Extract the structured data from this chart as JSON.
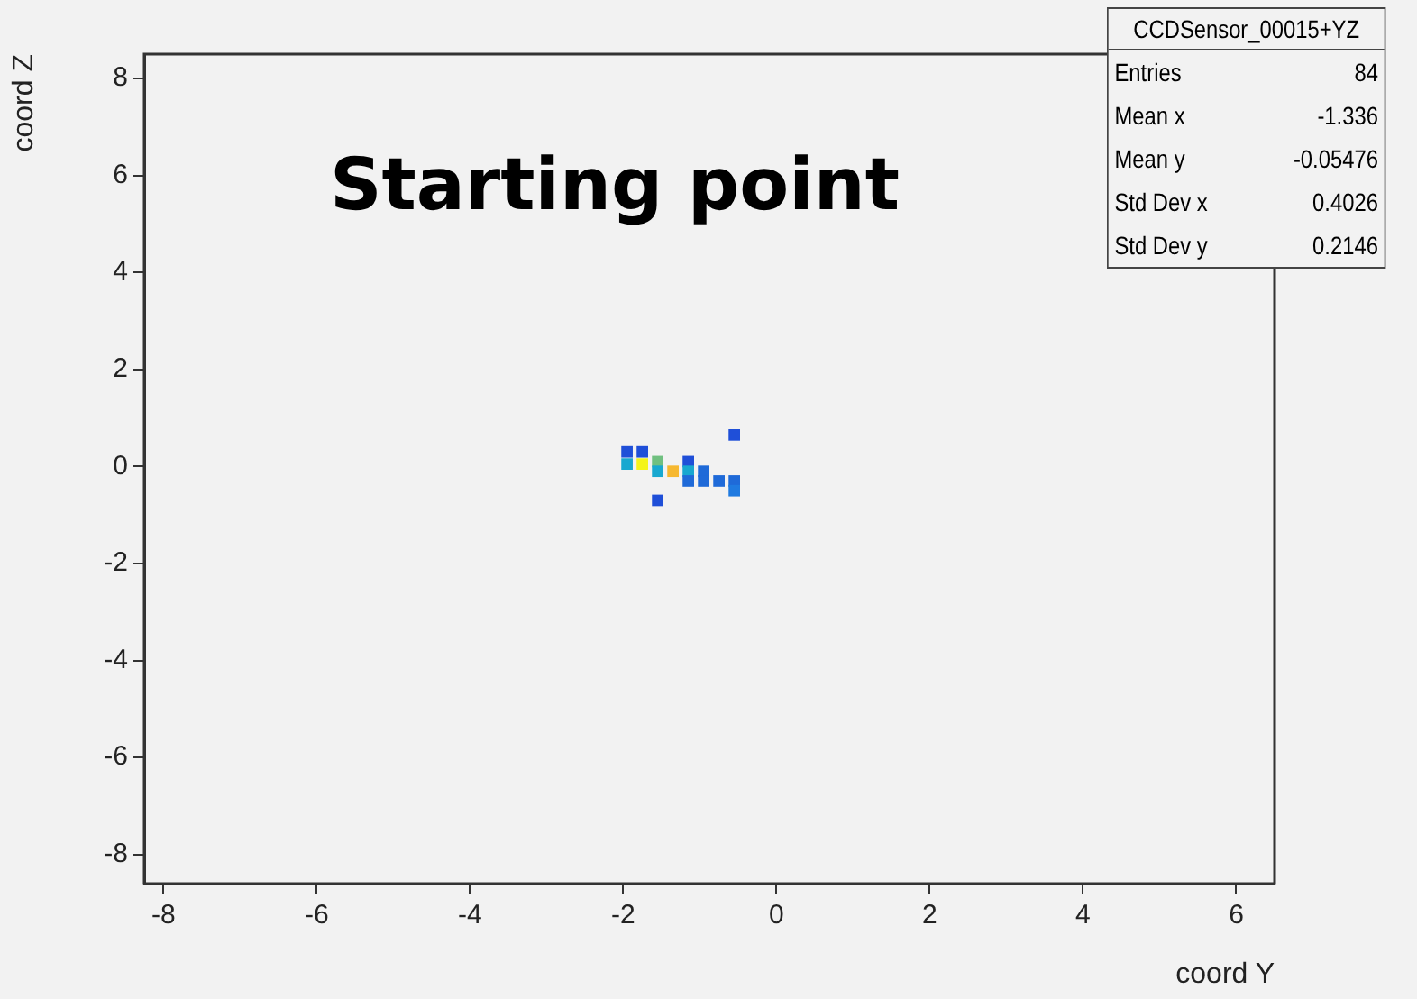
{
  "chart_data": {
    "type": "scatter",
    "title": "Starting point",
    "xlabel": "coord Y",
    "ylabel": "coord Z",
    "xlim": [
      -8.25,
      6.5
    ],
    "ylim": [
      -8.6,
      8.5
    ],
    "xticks": [
      -8,
      -6,
      -4,
      -2,
      0,
      2,
      4,
      6
    ],
    "yticks": [
      -8,
      -6,
      -4,
      -2,
      0,
      2,
      4,
      6,
      8
    ],
    "grid": false,
    "legend": false,
    "marker": "square",
    "annotations": [
      "CCDSensor_00015+YZ",
      "Entries",
      "84",
      "Mean x",
      "-1.336",
      "Mean y",
      "-0.05476",
      "Std Dev x",
      "0.4026",
      "Std Dev y",
      "0.2146"
    ],
    "series": [
      {
        "x": [
          -0.55,
          -1.95,
          -1.75,
          -1.95,
          -1.75,
          -1.55,
          -1.55,
          -1.35,
          -1.15,
          -1.15,
          -1.15,
          -0.95,
          -0.95,
          -0.75,
          -0.55,
          -0.55,
          -1.55
        ],
        "values": [
          0.65,
          0.3,
          0.3,
          0.05,
          0.05,
          0.1,
          -0.1,
          -0.1,
          0.1,
          -0.1,
          -0.3,
          -0.1,
          -0.3,
          -0.3,
          -0.3,
          -0.5,
          -0.7
        ],
        "colors": [
          "#1f4fd8",
          "#1f4fd8",
          "#1f4fd8",
          "#18a8d0",
          "#f4f41a",
          "#70c080",
          "#18a8d0",
          "#f6b830",
          "#1f4fd8",
          "#18a8d0",
          "#1f6ad8",
          "#1f6ad8",
          "#1f6ad8",
          "#1f6ad8",
          "#1f6ad8",
          "#1f7ae0",
          "#1f4fd8"
        ]
      }
    ]
  }
}
